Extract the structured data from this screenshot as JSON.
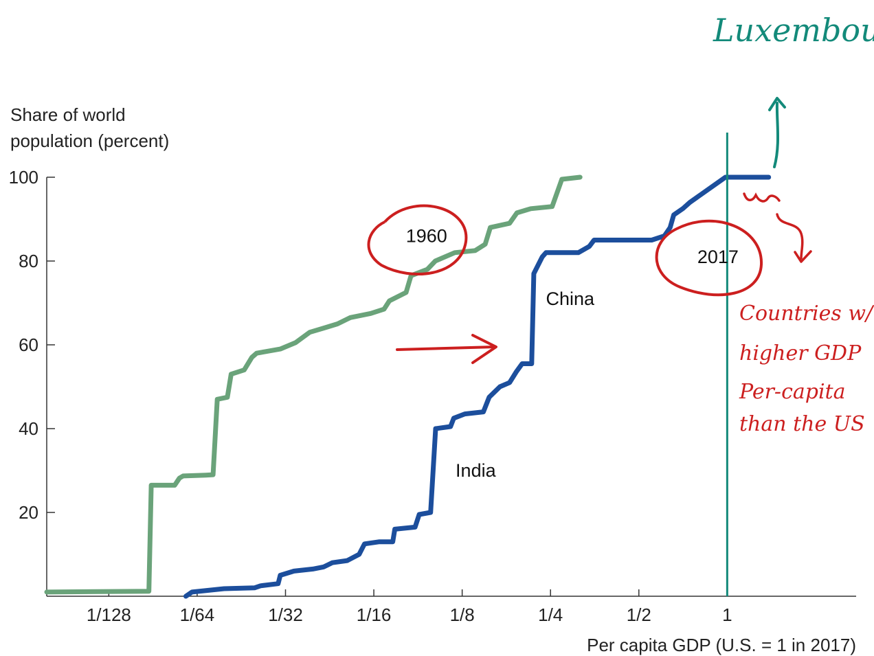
{
  "chart_data": {
    "type": "line",
    "ylabel_line1": "Share of world",
    "ylabel_line2": "population (percent)",
    "xlabel": "Per capita GDP (U.S. = 1 in 2017)",
    "x_scale": "log2",
    "x_ticks": [
      {
        "value": 0.0078125,
        "label": "1/128"
      },
      {
        "value": 0.015625,
        "label": "1/64"
      },
      {
        "value": 0.03125,
        "label": "1/32"
      },
      {
        "value": 0.0625,
        "label": "1/16"
      },
      {
        "value": 0.125,
        "label": "1/8"
      },
      {
        "value": 0.25,
        "label": "1/4"
      },
      {
        "value": 0.5,
        "label": "1/2"
      },
      {
        "value": 1,
        "label": "1"
      }
    ],
    "y_ticks": [
      {
        "value": 20,
        "label": "20"
      },
      {
        "value": 40,
        "label": "40"
      },
      {
        "value": 60,
        "label": "60"
      },
      {
        "value": 80,
        "label": "80"
      },
      {
        "value": 100,
        "label": "100"
      }
    ],
    "xlim": [
      0.0048,
      2.75
    ],
    "ylim": [
      0,
      100
    ],
    "series": [
      {
        "name": "1960",
        "color": "#6aa37a",
        "points": [
          [
            0.0048,
            1
          ],
          [
            0.0107,
            1.2
          ],
          [
            0.0109,
            26.5
          ],
          [
            0.0131,
            26.5
          ],
          [
            0.0136,
            28.2
          ],
          [
            0.014,
            28.7
          ],
          [
            0.0167,
            28.9
          ],
          [
            0.0177,
            29
          ],
          [
            0.0183,
            47
          ],
          [
            0.0198,
            47.5
          ],
          [
            0.0204,
            53
          ],
          [
            0.0226,
            54
          ],
          [
            0.024,
            57
          ],
          [
            0.0249,
            58
          ],
          [
            0.03,
            59
          ],
          [
            0.0338,
            60.5
          ],
          [
            0.0378,
            63
          ],
          [
            0.0422,
            64
          ],
          [
            0.047,
            65
          ],
          [
            0.052,
            66.5
          ],
          [
            0.061,
            67.5
          ],
          [
            0.0677,
            68.5
          ],
          [
            0.0706,
            70.5
          ],
          [
            0.0805,
            72.5
          ],
          [
            0.0837,
            76.5
          ],
          [
            0.0951,
            78
          ],
          [
            0.1012,
            80
          ],
          [
            0.1179,
            82
          ],
          [
            0.1384,
            82.5
          ],
          [
            0.1497,
            84
          ],
          [
            0.1559,
            88
          ],
          [
            0.1813,
            89
          ],
          [
            0.1921,
            91.5
          ],
          [
            0.214,
            92.5
          ],
          [
            0.2532,
            93
          ],
          [
            0.2733,
            99.5
          ],
          [
            0.3152,
            100
          ]
        ]
      },
      {
        "name": "2017",
        "color": "#1c4e9c",
        "points": [
          [
            0.0143,
            0
          ],
          [
            0.015,
            1
          ],
          [
            0.0193,
            1.8
          ],
          [
            0.0245,
            2
          ],
          [
            0.0257,
            2.5
          ],
          [
            0.0295,
            3
          ],
          [
            0.03,
            5
          ],
          [
            0.0334,
            6
          ],
          [
            0.0387,
            6.5
          ],
          [
            0.0422,
            7
          ],
          [
            0.0451,
            8
          ],
          [
            0.0507,
            8.5
          ],
          [
            0.0557,
            10
          ],
          [
            0.0581,
            12.5
          ],
          [
            0.0653,
            13
          ],
          [
            0.0725,
            13
          ],
          [
            0.0737,
            16
          ],
          [
            0.0864,
            16.5
          ],
          [
            0.0892,
            19.5
          ],
          [
            0.0976,
            20
          ],
          [
            0.1015,
            40
          ],
          [
            0.1141,
            40.5
          ],
          [
            0.117,
            42.5
          ],
          [
            0.1276,
            43.5
          ],
          [
            0.1476,
            44
          ],
          [
            0.1545,
            47.5
          ],
          [
            0.1681,
            50
          ],
          [
            0.1814,
            51
          ],
          [
            0.1909,
            53.5
          ],
          [
            0.2001,
            55.5
          ],
          [
            0.2157,
            55.5
          ],
          [
            0.2193,
            77
          ],
          [
            0.2343,
            81
          ],
          [
            0.2413,
            82
          ],
          [
            0.3109,
            82
          ],
          [
            0.339,
            83.5
          ],
          [
            0.3518,
            85
          ],
          [
            0.4525,
            85
          ],
          [
            0.553,
            85
          ],
          [
            0.6112,
            86
          ],
          [
            0.639,
            88
          ],
          [
            0.6571,
            91
          ],
          [
            0.7057,
            92.5
          ],
          [
            0.7461,
            94
          ],
          [
            0.9864,
            100
          ],
          [
            1.117,
            100
          ],
          [
            1.3848,
            100
          ]
        ]
      }
    ],
    "annotations": [
      {
        "text": "1960",
        "x": 0.0945,
        "y": 84.5
      },
      {
        "text": "2017",
        "x": 0.93,
        "y": 79.5
      },
      {
        "text": "China",
        "x": 0.2916,
        "y": 69.5
      },
      {
        "text": "India",
        "x": 0.139,
        "y": 28.5
      }
    ],
    "reference_line": {
      "x": 1,
      "color": "#138a7a"
    }
  },
  "handwriting": {
    "title": "Luxembourgh",
    "note_lines": [
      "Countries w/",
      "higher GDP",
      "Per-capita",
      "than the US"
    ],
    "teal": "#138a7a",
    "red": "#cc1f1f"
  }
}
